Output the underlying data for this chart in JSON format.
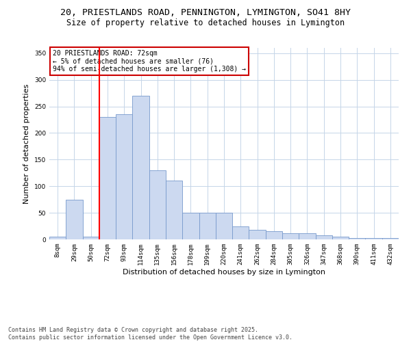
{
  "title_line1": "20, PRIESTLANDS ROAD, PENNINGTON, LYMINGTON, SO41 8HY",
  "title_line2": "Size of property relative to detached houses in Lymington",
  "xlabel": "Distribution of detached houses by size in Lymington",
  "ylabel": "Number of detached properties",
  "bar_labels": [
    "8sqm",
    "29sqm",
    "50sqm",
    "72sqm",
    "93sqm",
    "114sqm",
    "135sqm",
    "156sqm",
    "178sqm",
    "199sqm",
    "220sqm",
    "241sqm",
    "262sqm",
    "284sqm",
    "305sqm",
    "326sqm",
    "347sqm",
    "368sqm",
    "390sqm",
    "411sqm",
    "432sqm"
  ],
  "bar_values": [
    5,
    75,
    5,
    230,
    235,
    270,
    130,
    110,
    50,
    50,
    50,
    25,
    18,
    15,
    12,
    12,
    8,
    5,
    2,
    2,
    2
  ],
  "bar_color": "#ccd9f0",
  "bar_edge_color": "#7799cc",
  "ylim": [
    0,
    360
  ],
  "yticks": [
    0,
    50,
    100,
    150,
    200,
    250,
    300,
    350
  ],
  "annotation_text": "20 PRIESTLANDS ROAD: 72sqm\n← 5% of detached houses are smaller (76)\n94% of semi-detached houses are larger (1,308) →",
  "annotation_box_color": "#ffffff",
  "annotation_box_edge": "#cc0000",
  "footnote": "Contains HM Land Registry data © Crown copyright and database right 2025.\nContains public sector information licensed under the Open Government Licence v3.0.",
  "background_color": "#ffffff",
  "grid_color": "#c5d5e8",
  "title_fontsize": 9.5,
  "subtitle_fontsize": 8.5,
  "axis_label_fontsize": 8,
  "tick_fontsize": 6.5,
  "annotation_fontsize": 7,
  "footnote_fontsize": 6
}
